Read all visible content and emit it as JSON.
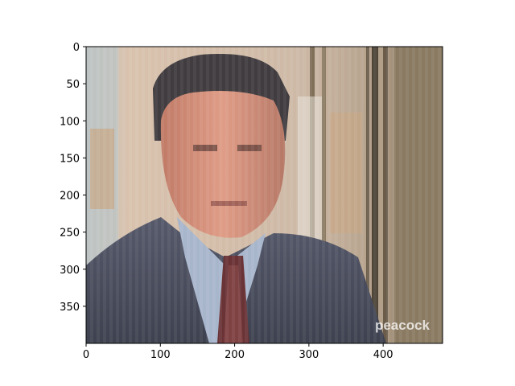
{
  "image": {
    "source_width": 480,
    "source_height": 400,
    "description_icon": "distorted-photo-icon",
    "colors": {
      "wall": "#c6b3a0",
      "wall_left": "#b9c3c4",
      "window_right": "#8a7a62",
      "hair": "#403c40",
      "skin": "#d4927c",
      "suit": "#4a505e",
      "shirt": "#a8b6cc",
      "tie": "#6a3336",
      "bright_stripe": "#e9e4dc"
    }
  },
  "watermark": {
    "text": "peacock"
  },
  "axes": {
    "xlim": [
      0,
      480
    ],
    "ylim": [
      400,
      0
    ],
    "x_ticks": [
      0,
      100,
      200,
      300,
      400
    ],
    "y_ticks": [
      0,
      50,
      100,
      150,
      200,
      250,
      300,
      350
    ]
  }
}
